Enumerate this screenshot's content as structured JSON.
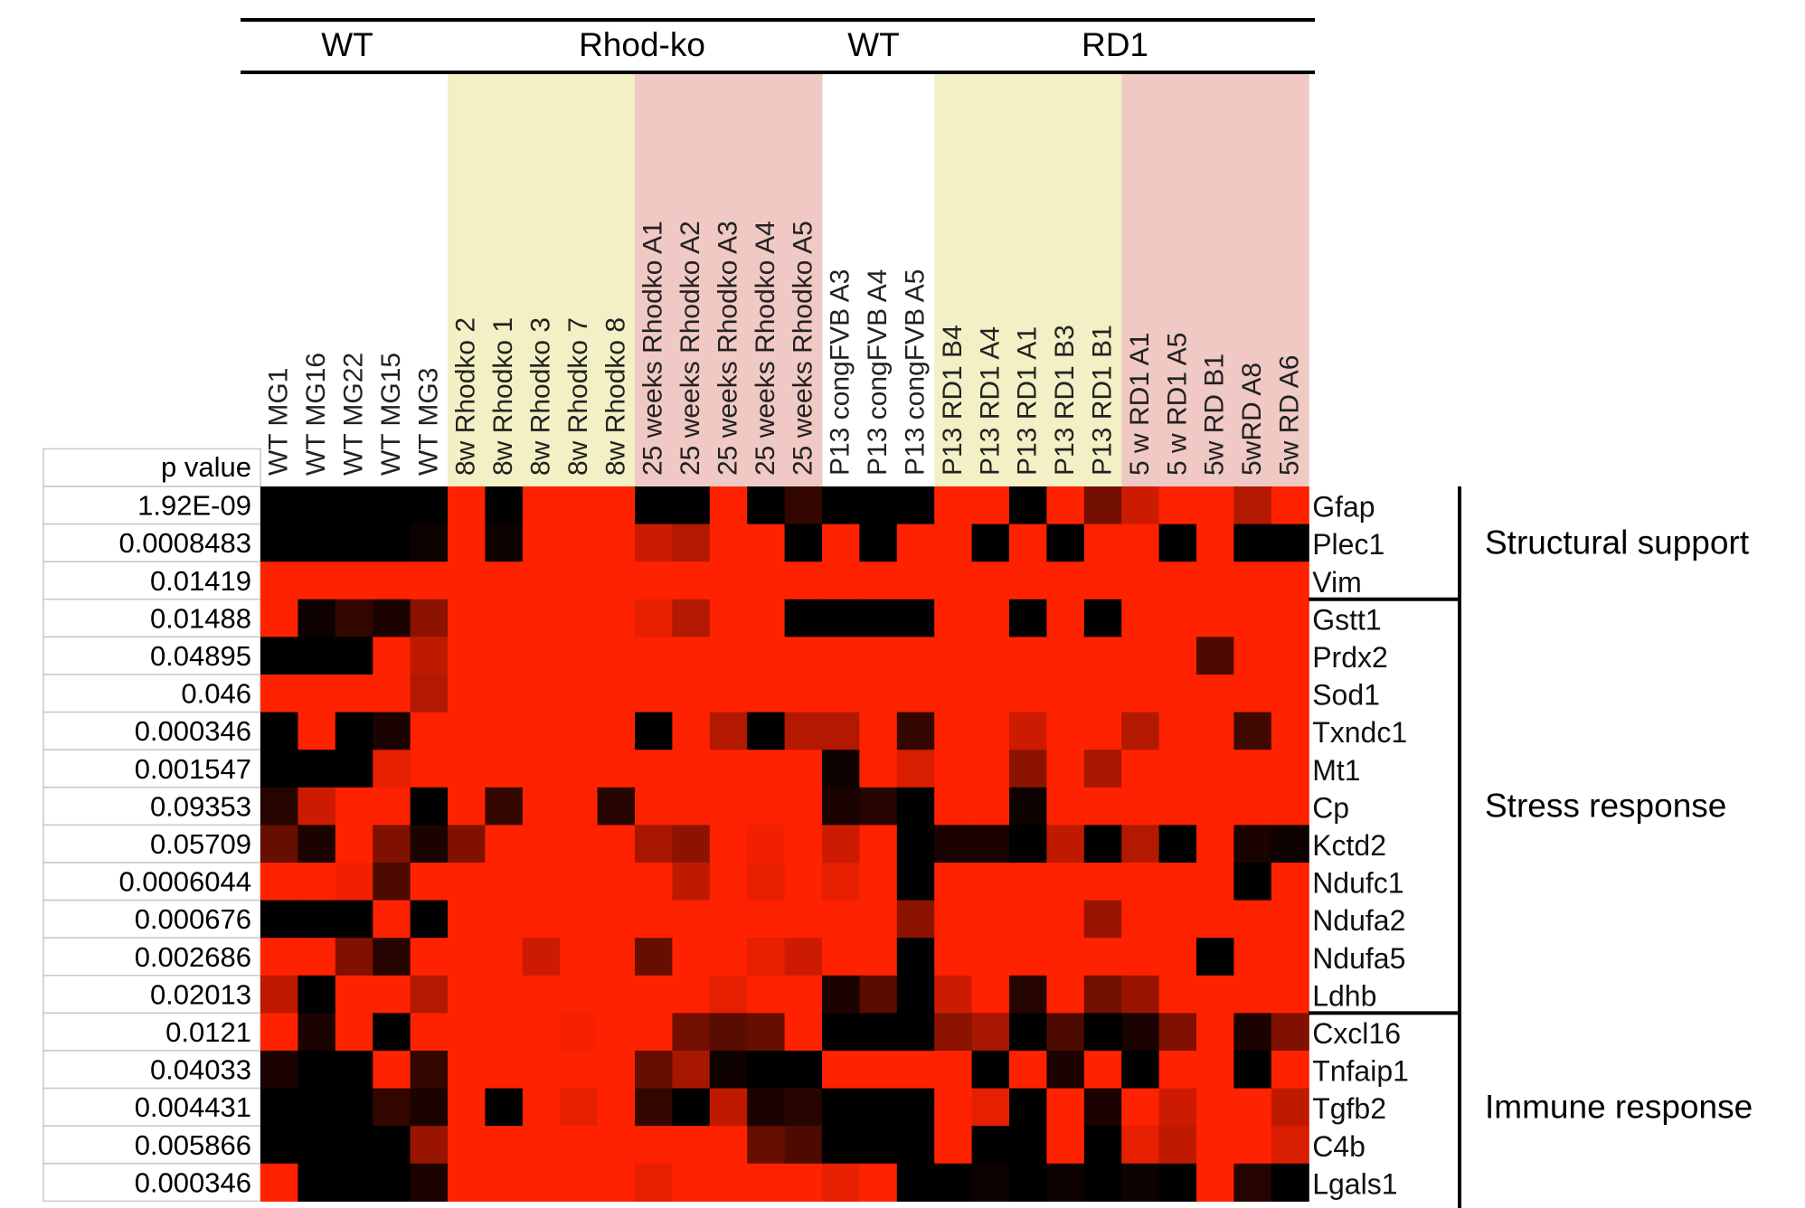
{
  "chart_data": {
    "type": "heatmap",
    "header_groups": [
      "WT",
      "Rhod-ko",
      "WT",
      "RD1"
    ],
    "columns": [
      "WT MG1",
      "WT MG16",
      "WT MG22",
      "WT MG15",
      "WT MG3",
      "8w Rhodko 2",
      "8w Rhodko 1",
      "8w Rhodko 3",
      "8w Rhodko 7",
      "8w Rhodko 8",
      "25 weeks Rhodko A1",
      "25 weeks Rhodko A2",
      "25 weeks Rhodko A3",
      "25 weeks Rhodko A4",
      "25 weeks Rhodko A5",
      "P13 congFVB A3",
      "P13 congFVB A4",
      "P13 congFVB A5",
      "P13 RD1 B4",
      "P13 RD1 A4",
      "P13 RD1 A1",
      "P13 RD1 B3",
      "P13 RD1 B1",
      "5 w RD1 A1",
      "5 w RD1 A5",
      "5w RD B1",
      "5wRD A8",
      "5w RD A6"
    ],
    "column_shading": [
      "#ffffff",
      "#ffffff",
      "#ffffff",
      "#ffffff",
      "#ffffff",
      "#f2f0c4",
      "#f2f0c4",
      "#f2f0c4",
      "#f2f0c4",
      "#f2f0c4",
      "#f0c9c4",
      "#f0c9c4",
      "#f0c9c4",
      "#f0c9c4",
      "#f0c9c4",
      "#ffffff",
      "#ffffff",
      "#ffffff",
      "#f2f0c4",
      "#f2f0c4",
      "#f2f0c4",
      "#f2f0c4",
      "#f2f0c4",
      "#f0c9c4",
      "#f0c9c4",
      "#f0c9c4",
      "#f0c9c4",
      "#f0c9c4"
    ],
    "pvalue_header": "p value",
    "rows": [
      {
        "gene": "Gfap",
        "pvalue": "1.92E-09"
      },
      {
        "gene": "Plec1",
        "pvalue": "0.0008483"
      },
      {
        "gene": "Vim",
        "pvalue": "0.01419"
      },
      {
        "gene": "Gstt1",
        "pvalue": "0.01488"
      },
      {
        "gene": "Prdx2",
        "pvalue": "0.04895"
      },
      {
        "gene": "Sod1",
        "pvalue": "0.046"
      },
      {
        "gene": "Txndc1",
        "pvalue": "0.000346"
      },
      {
        "gene": "Mt1",
        "pvalue": "0.001547"
      },
      {
        "gene": "Cp",
        "pvalue": "0.09353"
      },
      {
        "gene": "Kctd2",
        "pvalue": "0.05709"
      },
      {
        "gene": "Ndufc1",
        "pvalue": "0.0006044"
      },
      {
        "gene": "Ndufa2",
        "pvalue": "0.000676"
      },
      {
        "gene": "Ndufa5",
        "pvalue": "0.002686"
      },
      {
        "gene": "Ldhb",
        "pvalue": "0.02013"
      },
      {
        "gene": "Cxcl16",
        "pvalue": "0.0121"
      },
      {
        "gene": "Tnfaip1",
        "pvalue": "0.04033"
      },
      {
        "gene": "Tgfb2",
        "pvalue": "0.004431"
      },
      {
        "gene": "C4b",
        "pvalue": "0.005866"
      },
      {
        "gene": "Lgals1",
        "pvalue": "0.000346"
      }
    ],
    "categories": [
      {
        "label": "Structural support",
        "first_row": 0,
        "last_row": 2
      },
      {
        "label": "Stress response",
        "first_row": 3,
        "last_row": 13
      },
      {
        "label": "Immune response",
        "first_row": 14,
        "last_row": 18
      }
    ],
    "color_scale": {
      "low": "#000000",
      "high": "#ff2200"
    },
    "values": [
      [
        0,
        0,
        0,
        0,
        0,
        1,
        0,
        1,
        1,
        1,
        0,
        0,
        1,
        0,
        0.2,
        0,
        0,
        0,
        1,
        1,
        0,
        1,
        0.45,
        0.8,
        1,
        1,
        0.7,
        1
      ],
      [
        0,
        0,
        0,
        0,
        0.05,
        1,
        0.05,
        1,
        1,
        1,
        0.8,
        0.7,
        1,
        1,
        0,
        1,
        0,
        1,
        1,
        0,
        1,
        0,
        1,
        1,
        0,
        1,
        0,
        0
      ],
      [
        1,
        1,
        1,
        1,
        1,
        1,
        1,
        1,
        1,
        1,
        1,
        1,
        1,
        1,
        1,
        1,
        1,
        1,
        1,
        1,
        1,
        1,
        1,
        1,
        1,
        1,
        1,
        1
      ],
      [
        1,
        0.05,
        0.2,
        0.1,
        0.55,
        1,
        1,
        1,
        1,
        1,
        0.9,
        0.7,
        1,
        1,
        0,
        0,
        0,
        0,
        1,
        1,
        0,
        1,
        0,
        1,
        1,
        1,
        1,
        1
      ],
      [
        0,
        0,
        0,
        1,
        0.75,
        1,
        1,
        1,
        1,
        1,
        1,
        1,
        1,
        1,
        1,
        1,
        1,
        1,
        1,
        1,
        1,
        1,
        1,
        1,
        1,
        0.3,
        1,
        1
      ],
      [
        1,
        1,
        1,
        1,
        0.7,
        1,
        1,
        1,
        1,
        1,
        1,
        1,
        1,
        1,
        1,
        1,
        1,
        1,
        1,
        1,
        1,
        1,
        1,
        1,
        1,
        1,
        1,
        1
      ],
      [
        0,
        1,
        0,
        0.1,
        1,
        1,
        1,
        1,
        1,
        1,
        0,
        1,
        0.7,
        0,
        0.7,
        0.7,
        1,
        0.2,
        1,
        1,
        0.8,
        1,
        1,
        0.7,
        1,
        1,
        0.25,
        1
      ],
      [
        0,
        0,
        0,
        0.9,
        1,
        1,
        1,
        1,
        1,
        1,
        1,
        1,
        1,
        1,
        1,
        0.05,
        1,
        0.85,
        1,
        1,
        0.55,
        1,
        0.65,
        1,
        1,
        1,
        1,
        1
      ],
      [
        0.15,
        0.8,
        1,
        1,
        0,
        1,
        0.2,
        1,
        1,
        0.15,
        1,
        1,
        1,
        1,
        1,
        0.1,
        0.15,
        0,
        1,
        1,
        0.05,
        1,
        1,
        1,
        1,
        1,
        1,
        1
      ],
      [
        0.4,
        0.1,
        1,
        0.5,
        0.1,
        0.5,
        1,
        1,
        1,
        1,
        0.65,
        0.55,
        1,
        0.95,
        1,
        0.8,
        1,
        0,
        0.1,
        0.1,
        0,
        0.75,
        0,
        0.7,
        0,
        1,
        0.1,
        0.05
      ],
      [
        1,
        1,
        0.95,
        0.3,
        1,
        1,
        1,
        1,
        1,
        1,
        1,
        0.75,
        1,
        0.9,
        1,
        0.9,
        1,
        0,
        1,
        1,
        1,
        1,
        1,
        1,
        1,
        1,
        0,
        1
      ],
      [
        0,
        0,
        0,
        1,
        0,
        1,
        1,
        1,
        1,
        1,
        1,
        1,
        1,
        1,
        1,
        1,
        1,
        0.55,
        1,
        1,
        1,
        1,
        0.6,
        1,
        1,
        1,
        1,
        1
      ],
      [
        1,
        1,
        0.5,
        0.15,
        1,
        1,
        1,
        0.8,
        1,
        1,
        0.4,
        1,
        1,
        0.9,
        0.8,
        1,
        1,
        0,
        1,
        1,
        1,
        1,
        1,
        1,
        1,
        0,
        1,
        1
      ],
      [
        0.75,
        0,
        1,
        1,
        0.7,
        1,
        1,
        1,
        1,
        1,
        1,
        1,
        0.9,
        1,
        1,
        0.1,
        0.35,
        0,
        0.8,
        1,
        0.15,
        1,
        0.45,
        0.6,
        1,
        1,
        1,
        1
      ],
      [
        1,
        0.1,
        1,
        0,
        1,
        1,
        1,
        1,
        0.97,
        1,
        1,
        0.45,
        0.35,
        0.4,
        1,
        0,
        0,
        0,
        0.55,
        0.65,
        0,
        0.3,
        0,
        0.1,
        0.5,
        1,
        0.1,
        0.5
      ],
      [
        0.1,
        0,
        0,
        1,
        0.2,
        1,
        1,
        1,
        1,
        1,
        0.4,
        0.65,
        0.05,
        0,
        0,
        1,
        1,
        1,
        1,
        0,
        1,
        0.1,
        1,
        0,
        1,
        1,
        0,
        1
      ],
      [
        0,
        0,
        0,
        0.2,
        0.1,
        1,
        0,
        1,
        0.9,
        1,
        0.2,
        0,
        0.75,
        0.1,
        0.15,
        0,
        0,
        0,
        1,
        0.9,
        0,
        1,
        0.1,
        1,
        0.8,
        1,
        1,
        0.75
      ],
      [
        0,
        0,
        0,
        0,
        0.6,
        1,
        1,
        1,
        1,
        1,
        1,
        1,
        1,
        0.4,
        0.3,
        0,
        0,
        0,
        1,
        0,
        0,
        1,
        0,
        0.9,
        0.75,
        1,
        1,
        0.85
      ],
      [
        1,
        0,
        0,
        0,
        0.1,
        1,
        1,
        1,
        1,
        1,
        0.9,
        1,
        1,
        1,
        1,
        0.9,
        1,
        0,
        0,
        0.05,
        0,
        0.05,
        0,
        0.05,
        0,
        1,
        0.15,
        0
      ]
    ]
  }
}
